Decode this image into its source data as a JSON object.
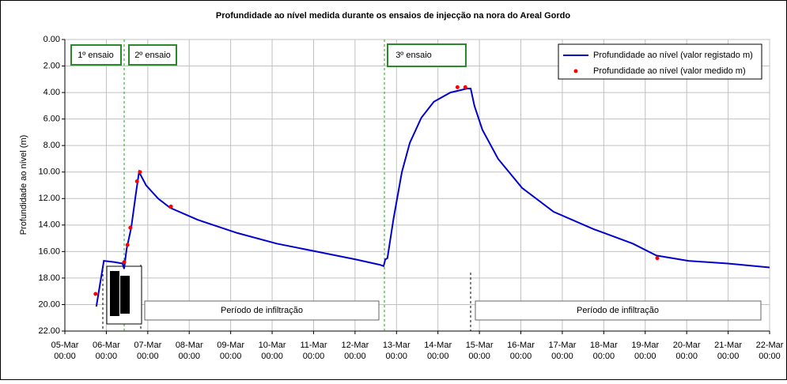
{
  "chart_data": {
    "type": "line",
    "title": "Profundidade ao nível medida durante os ensaios de injecção na nora do Areal Gordo",
    "y_label": "Profundidade ao nível (m)",
    "y_reversed": true,
    "grid": true,
    "legend_position": "upper-right",
    "xlim": [
      5,
      22
    ],
    "xticks": [
      {
        "value": 5,
        "label": "05-Mar 00:00"
      },
      {
        "value": 6,
        "label": "06-Mar 00:00"
      },
      {
        "value": 7,
        "label": "07-Mar 00:00"
      },
      {
        "value": 8,
        "label": "08-Mar 00:00"
      },
      {
        "value": 9,
        "label": "09-Mar 00:00"
      },
      {
        "value": 10,
        "label": "10-Mar 00:00"
      },
      {
        "value": 11,
        "label": "11-Mar 00:00"
      },
      {
        "value": 12,
        "label": "12-Mar 00:00"
      },
      {
        "value": 13,
        "label": "13-Mar 00:00"
      },
      {
        "value": 14,
        "label": "14-Mar 00:00"
      },
      {
        "value": 15,
        "label": "15-Mar 00:00"
      },
      {
        "value": 16,
        "label": "16-Mar 00:00"
      },
      {
        "value": 17,
        "label": "17-Mar 00:00"
      },
      {
        "value": 18,
        "label": "18-Mar 00:00"
      },
      {
        "value": 19,
        "label": "19-Mar 00:00"
      },
      {
        "value": 20,
        "label": "20-Mar 00:00"
      },
      {
        "value": 21,
        "label": "21-Mar 00:00"
      },
      {
        "value": 22,
        "label": "22-Mar 00:00"
      }
    ],
    "ylim": [
      0,
      22
    ],
    "yticks": [
      {
        "value": 0,
        "label": "0.00"
      },
      {
        "value": 2,
        "label": "2.00"
      },
      {
        "value": 4,
        "label": "4.00"
      },
      {
        "value": 6,
        "label": "6.00"
      },
      {
        "value": 8,
        "label": "8.00"
      },
      {
        "value": 10,
        "label": "10.00"
      },
      {
        "value": 12,
        "label": "12.00"
      },
      {
        "value": 14,
        "label": "14.00"
      },
      {
        "value": 16,
        "label": "16.00"
      },
      {
        "value": 18,
        "label": "18.00"
      },
      {
        "value": 20,
        "label": "20.00"
      },
      {
        "value": 22,
        "label": "22.00"
      }
    ],
    "series": [
      {
        "name": "Profundidade ao nível (valor registado m)",
        "color": "#0000cc",
        "style": "line",
        "x": [
          5.76,
          5.94,
          6.2,
          6.39,
          6.43,
          6.49,
          6.6,
          6.72,
          6.79,
          6.96,
          7.25,
          7.54,
          8.2,
          9.16,
          10.11,
          11.07,
          12.02,
          12.6,
          12.69,
          12.73,
          12.78,
          12.93,
          13.13,
          13.32,
          13.6,
          13.9,
          14.3,
          14.7,
          14.79,
          14.88,
          15.07,
          15.45,
          16.03,
          16.79,
          17.75,
          18.7,
          19.27,
          20.04,
          20.99,
          22
        ],
        "values": [
          20.15,
          16.7,
          16.8,
          16.9,
          17.3,
          15.8,
          14.2,
          11.5,
          10.0,
          11.0,
          12.0,
          12.7,
          13.6,
          14.6,
          15.4,
          16.0,
          16.6,
          17.0,
          17.1,
          16.6,
          16.5,
          13.5,
          10.0,
          7.8,
          5.9,
          4.7,
          4.0,
          3.7,
          3.7,
          5.0,
          6.8,
          9.0,
          11.2,
          13.0,
          14.3,
          15.4,
          16.3,
          16.7,
          16.9,
          17.2
        ]
      },
      {
        "name": "Profundidade ao nível (valor medido m)",
        "color": "#ff0000",
        "style": "marker",
        "x": [
          5.74,
          6.43,
          6.51,
          6.58,
          6.74,
          6.81,
          7.56,
          14.47,
          14.66,
          19.29
        ],
        "values": [
          19.2,
          16.8,
          15.5,
          14.2,
          10.7,
          10.0,
          12.6,
          3.6,
          3.6,
          16.5
        ]
      }
    ],
    "annotations": [
      "1º ensaio",
      "2º ensaio",
      "3º ensaio",
      "Período de infiltração",
      "Período de infiltração"
    ]
  }
}
